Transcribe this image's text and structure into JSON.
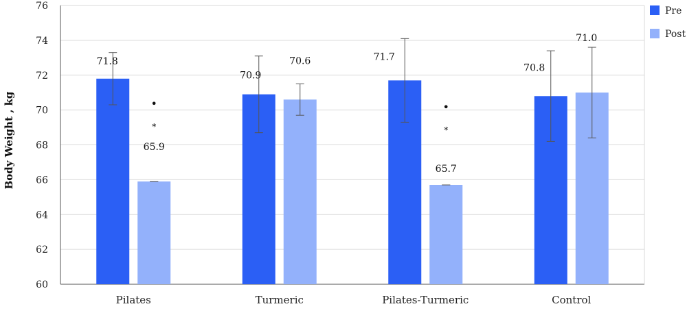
{
  "chart_data": {
    "type": "bar",
    "ylabel": "Body Weight , kg",
    "xlabel": "",
    "title": "",
    "ylim": [
      60,
      76
    ],
    "yticks": [
      60,
      62,
      64,
      66,
      68,
      70,
      72,
      74,
      76
    ],
    "grid": true,
    "legend_position": "top-right",
    "categories": [
      "Pilates",
      "Turmeric",
      "Pilates-Turmeric",
      "Control"
    ],
    "series": [
      {
        "name": "Pre",
        "color": "#2b5ff5",
        "values": [
          71.8,
          70.9,
          71.7,
          70.8
        ],
        "labels": [
          "71.8",
          "70.9",
          "71.7",
          "70.8"
        ],
        "error_low": [
          70.3,
          68.7,
          69.3,
          68.2
        ],
        "error_high": [
          73.3,
          73.1,
          74.1,
          73.4
        ]
      },
      {
        "name": "Post",
        "color": "#93b1fb",
        "values": [
          65.9,
          70.6,
          65.7,
          71.0
        ],
        "labels": [
          "65.9",
          "70.6",
          "65.7",
          "71.0"
        ],
        "error_low": [
          65.9,
          69.7,
          65.7,
          68.4
        ],
        "error_high": [
          65.9,
          71.5,
          65.7,
          73.6
        ]
      }
    ],
    "significance": [
      {
        "category": "Pilates",
        "series": "Post",
        "dot": "•",
        "star": "*"
      },
      {
        "category": "Pilates-Turmeric",
        "series": "Post",
        "dot": "•",
        "star": "*"
      }
    ]
  }
}
